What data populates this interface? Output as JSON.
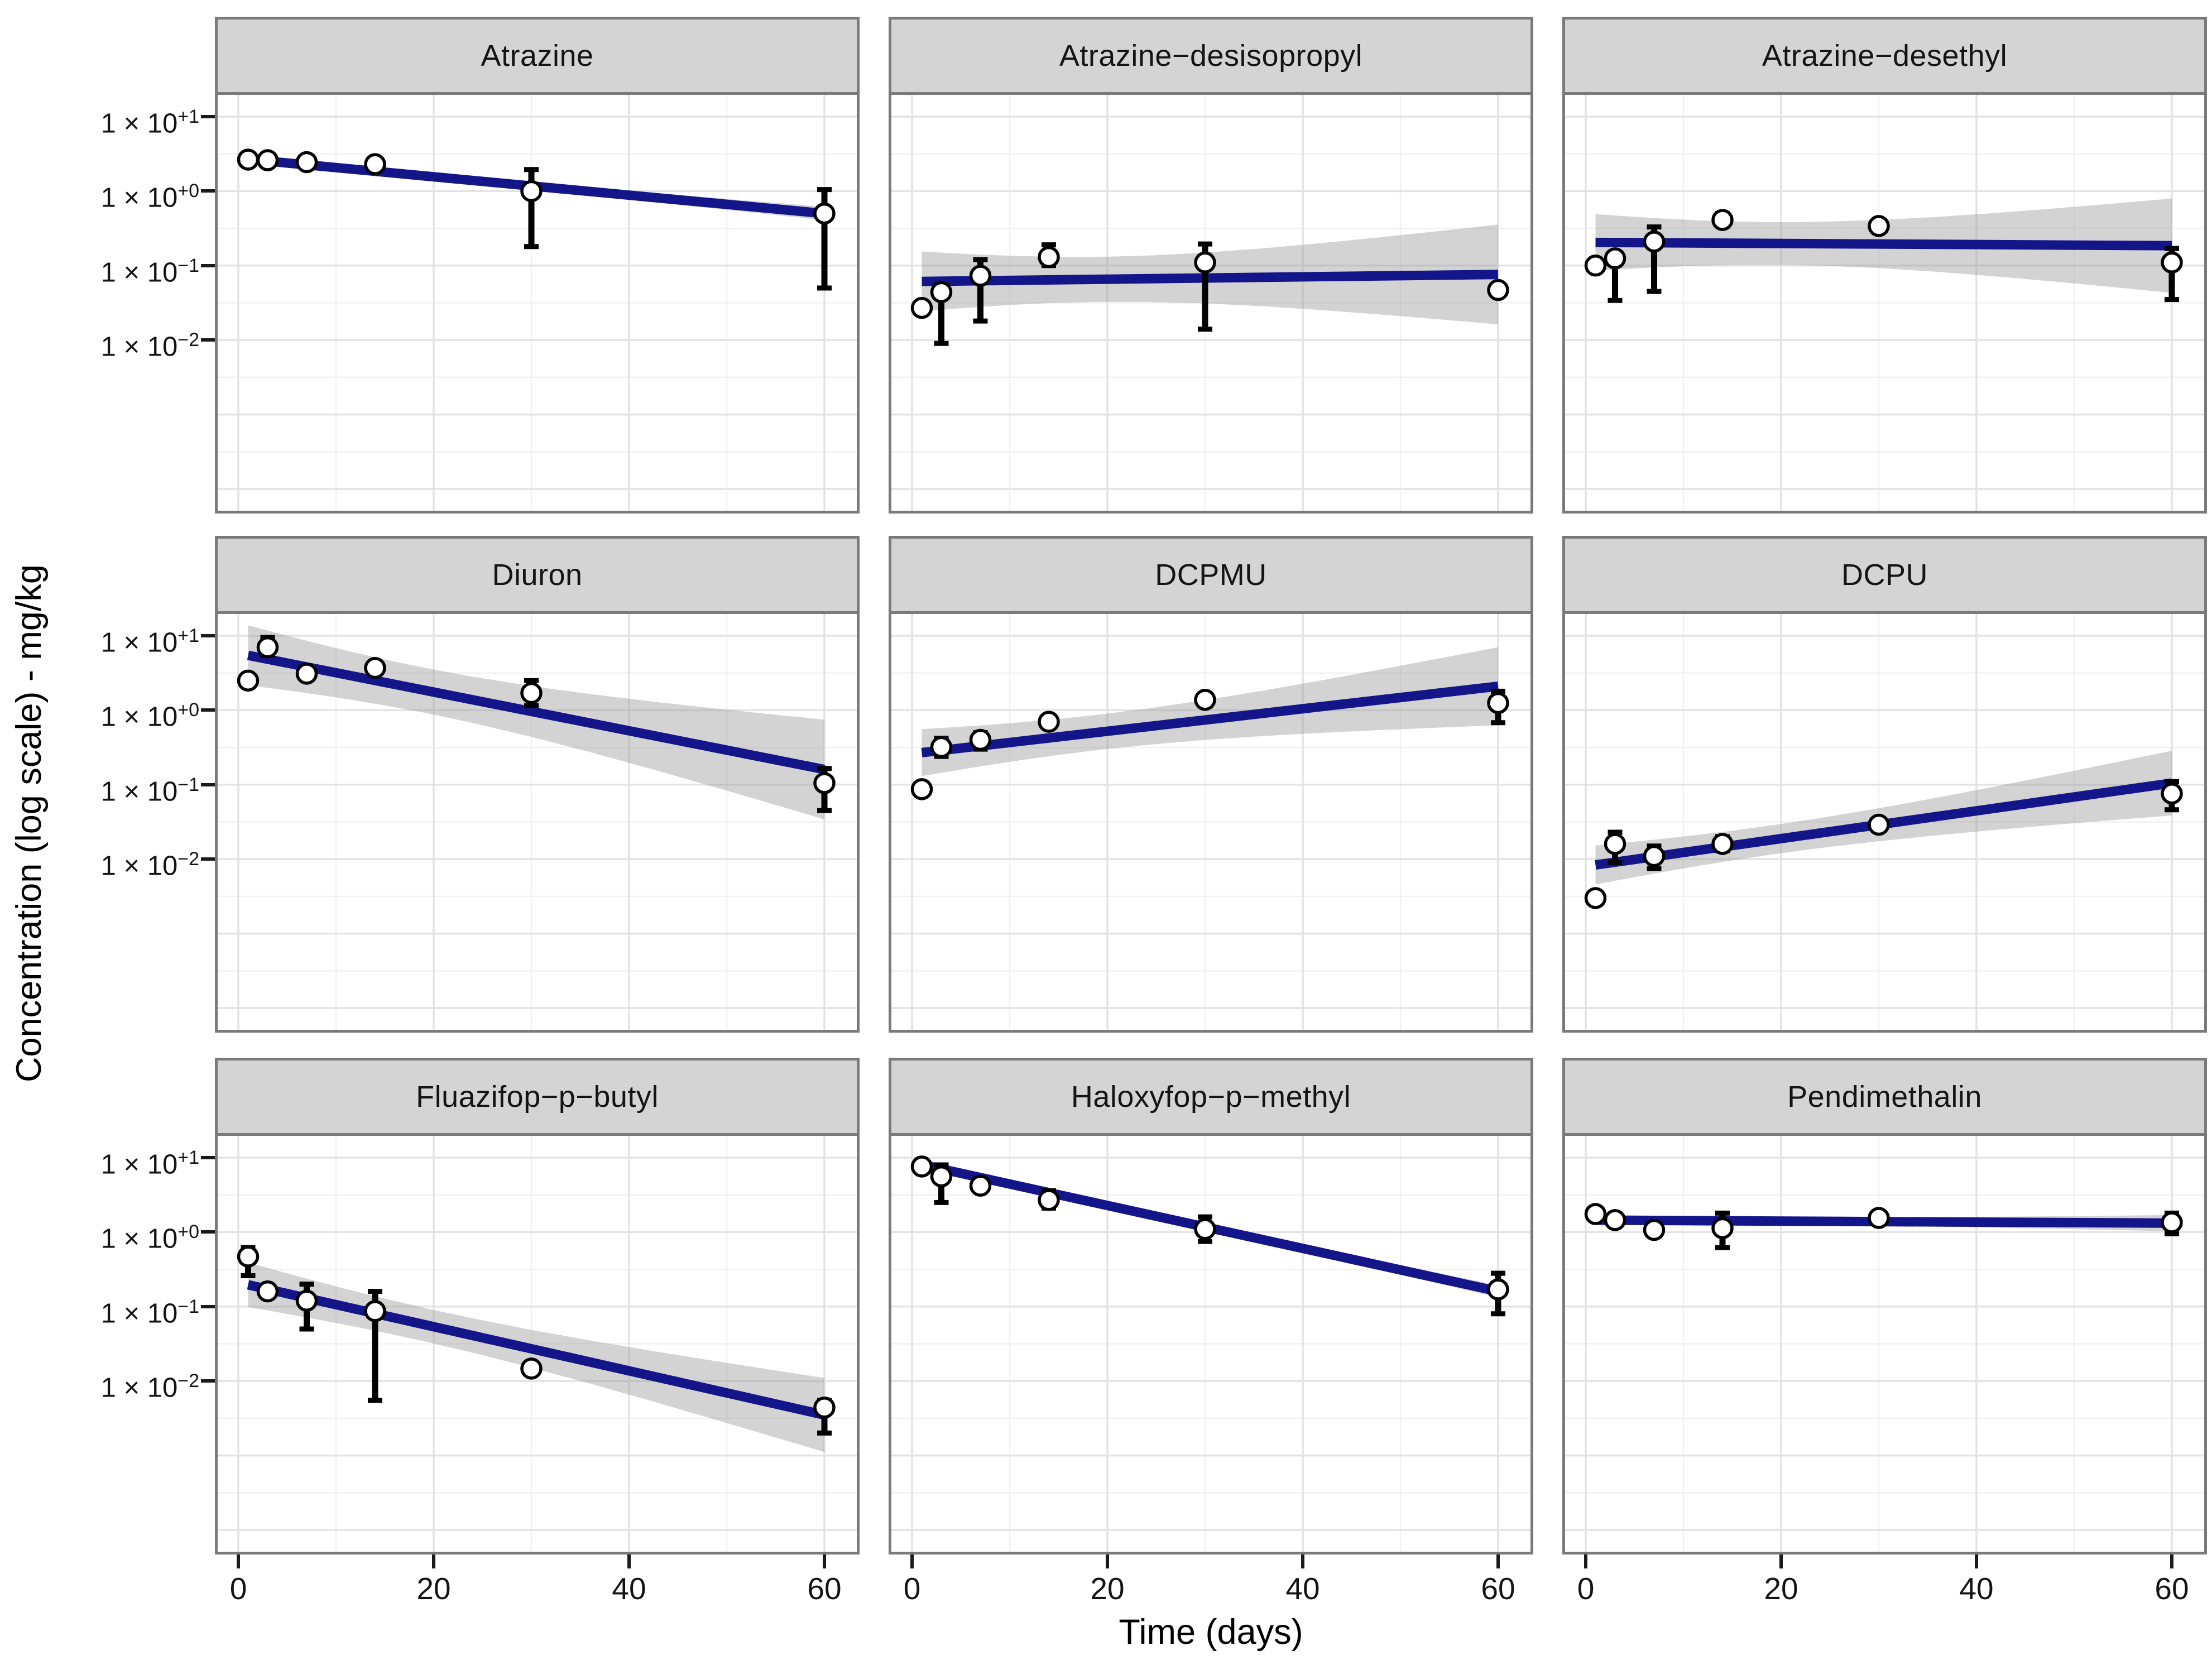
{
  "figure": {
    "description": "3x3 faceted scatter plot of pesticide concentration vs time with log-scale y axis, per-facet linear fit line and confidence band",
    "facet_grid": "3 columns x 3 rows"
  },
  "chart_data": {
    "type": "scatter",
    "x_axis": {
      "label": "Time (days)",
      "ticks": [
        0,
        20,
        40,
        60
      ],
      "minor_ticks": [
        10,
        30,
        50
      ],
      "domain_days": [
        -2.4,
        63.6
      ]
    },
    "y_axis": {
      "label": "Concentration (log scale) - mg/kg",
      "scale": "log10",
      "log10_domain_top_to_bottom": [
        1.33,
        -4.33
      ],
      "tick_exponents": [
        1,
        0,
        -1,
        -2
      ],
      "tick_labels": [
        {
          "base": "1 × 10",
          "exp": "+1"
        },
        {
          "base": "1 × 10",
          "exp": "+0"
        },
        {
          "base": "1 × 10",
          "exp": "−1"
        },
        {
          "base": "1 × 10",
          "exp": "−2"
        }
      ],
      "gridline_exponents_major": [
        1,
        0,
        -1,
        -2,
        -3,
        -4
      ],
      "gridline_exponents_minor": [
        0.5,
        -0.5,
        -1.5,
        -2.5,
        -3.5
      ]
    },
    "sample_days": [
      1,
      3,
      7,
      14,
      30,
      60
    ],
    "ci_model": "halfwidth_log10(x) = ci_k * sqrt(1/6 + (x-19.17)^2/2550.8)",
    "facets": [
      {
        "title": "Atrazine",
        "points": [
          {
            "day": 1,
            "value": 2.65
          },
          {
            "day": 3,
            "value": 2.6
          },
          {
            "day": 7,
            "value": 2.45
          },
          {
            "day": 14,
            "value": 2.3
          },
          {
            "day": 30,
            "value": 1.0,
            "err_lo": 0.18,
            "err_hi": 1.95
          },
          {
            "day": 60,
            "value": 0.5,
            "err_lo": 0.05,
            "err_hi": 1.05
          }
        ],
        "fit": {
          "day0": 2.75,
          "day60": 0.5
        },
        "ci_k": 0.1
      },
      {
        "title": "Atrazine−desisopropyl",
        "points": [
          {
            "day": 1,
            "value": 0.027
          },
          {
            "day": 3,
            "value": 0.044,
            "err_lo": 0.009,
            "err_hi": 0.055
          },
          {
            "day": 7,
            "value": 0.073,
            "err_lo": 0.018,
            "err_hi": 0.12
          },
          {
            "day": 14,
            "value": 0.13,
            "err_lo": 0.1,
            "err_hi": 0.19
          },
          {
            "day": 30,
            "value": 0.11,
            "err_lo": 0.014,
            "err_hi": 0.195
          },
          {
            "day": 60,
            "value": 0.047
          }
        ],
        "fit": {
          "day0": 0.061,
          "day60": 0.076
        },
        "ci_k": 0.74
      },
      {
        "title": "Atrazine−desethyl",
        "points": [
          {
            "day": 1,
            "value": 0.1
          },
          {
            "day": 3,
            "value": 0.125,
            "err_lo": 0.034,
            "err_hi": 0.145
          },
          {
            "day": 7,
            "value": 0.21,
            "err_lo": 0.045,
            "err_hi": 0.33
          },
          {
            "day": 14,
            "value": 0.41,
            "err_lo": 0.34,
            "err_hi": 0.5
          },
          {
            "day": 30,
            "value": 0.34
          },
          {
            "day": 60,
            "value": 0.11,
            "err_lo": 0.035,
            "err_hi": 0.17
          }
        ],
        "fit": {
          "day0": 0.205,
          "day60": 0.185
        },
        "ci_k": 0.7
      },
      {
        "title": "Diuron",
        "points": [
          {
            "day": 1,
            "value": 2.5
          },
          {
            "day": 3,
            "value": 7.0,
            "err_lo": 5.5,
            "err_hi": 9.5
          },
          {
            "day": 7,
            "value": 3.1
          },
          {
            "day": 14,
            "value": 3.7
          },
          {
            "day": 30,
            "value": 1.7,
            "err_lo": 1.15,
            "err_hi": 2.5
          },
          {
            "day": 60,
            "value": 0.105,
            "err_lo": 0.045,
            "err_hi": 0.165
          }
        ],
        "fit": {
          "day0": 5.8,
          "day60": 0.16
        },
        "ci_k": 0.74
      },
      {
        "title": "DCPMU",
        "points": [
          {
            "day": 1,
            "value": 0.087
          },
          {
            "day": 3,
            "value": 0.32,
            "err_lo": 0.24,
            "err_hi": 0.42
          },
          {
            "day": 7,
            "value": 0.4,
            "err_lo": 0.3,
            "err_hi": 0.5
          },
          {
            "day": 14,
            "value": 0.7
          },
          {
            "day": 30,
            "value": 1.38
          },
          {
            "day": 60,
            "value": 1.25,
            "err_lo": 0.68,
            "err_hi": 1.8
          }
        ],
        "fit": {
          "day0": 0.26,
          "day60": 2.1
        },
        "ci_k": 0.58
      },
      {
        "title": "DCPU",
        "points": [
          {
            "day": 1,
            "value": 0.003
          },
          {
            "day": 3,
            "value": 0.016,
            "err_lo": 0.009,
            "err_hi": 0.023
          },
          {
            "day": 7,
            "value": 0.011,
            "err_lo": 0.0075,
            "err_hi": 0.015
          },
          {
            "day": 14,
            "value": 0.016,
            "err_lo": 0.013,
            "err_hi": 0.02
          },
          {
            "day": 30,
            "value": 0.029
          },
          {
            "day": 60,
            "value": 0.076,
            "err_lo": 0.046,
            "err_hi": 0.11
          }
        ],
        "fit": {
          "day0": 0.008,
          "day60": 0.105
        },
        "ci_k": 0.48
      },
      {
        "title": "Fluazifop−p−butyl",
        "points": [
          {
            "day": 1,
            "value": 0.47,
            "err_lo": 0.26,
            "err_hi": 0.62
          },
          {
            "day": 3,
            "value": 0.16
          },
          {
            "day": 7,
            "value": 0.12,
            "err_lo": 0.05,
            "err_hi": 0.2
          },
          {
            "day": 14,
            "value": 0.087,
            "err_lo": 0.0055,
            "err_hi": 0.16
          },
          {
            "day": 30,
            "value": 0.0147
          },
          {
            "day": 60,
            "value": 0.0044,
            "err_lo": 0.002,
            "err_hi": 0.0055
          }
        ],
        "fit": {
          "day0": 0.21,
          "day60": 0.0035
        },
        "ci_k": 0.55
      },
      {
        "title": "Haloxyfop−p−methyl",
        "points": [
          {
            "day": 1,
            "value": 7.6,
            "err_lo": 6.8,
            "err_hi": 8.4
          },
          {
            "day": 3,
            "value": 5.6,
            "err_lo": 2.5,
            "err_hi": 8.0
          },
          {
            "day": 7,
            "value": 4.2
          },
          {
            "day": 14,
            "value": 2.7,
            "err_lo": 2.1,
            "err_hi": 3.6
          },
          {
            "day": 30,
            "value": 1.1,
            "err_lo": 0.75,
            "err_hi": 1.6
          },
          {
            "day": 60,
            "value": 0.17,
            "err_lo": 0.08,
            "err_hi": 0.28
          }
        ],
        "fit": {
          "day0": 8.6,
          "day60": 0.16
        },
        "ci_k": 0.09
      },
      {
        "title": "Pendimethalin",
        "points": [
          {
            "day": 1,
            "value": 1.75
          },
          {
            "day": 3,
            "value": 1.45
          },
          {
            "day": 7,
            "value": 1.07
          },
          {
            "day": 14,
            "value": 1.13,
            "err_lo": 0.62,
            "err_hi": 1.8
          },
          {
            "day": 30,
            "value": 1.55
          },
          {
            "day": 60,
            "value": 1.35,
            "err_lo": 0.95,
            "err_hi": 1.8
          }
        ],
        "fit": {
          "day0": 1.45,
          "day60": 1.32
        },
        "ci_k": 0.12
      }
    ],
    "style": {
      "fit_line_color": "#15158A",
      "band_color_rgb": "150,150,150",
      "band_opacity": 0.42,
      "point_fill": "#FFFFFF",
      "point_stroke": "#000000",
      "strip_bg": "#D4D4D4",
      "panel_border": "#7A7A7A",
      "grid_major": "#E3E3E3",
      "grid_minor": "#F1F1F1"
    }
  }
}
